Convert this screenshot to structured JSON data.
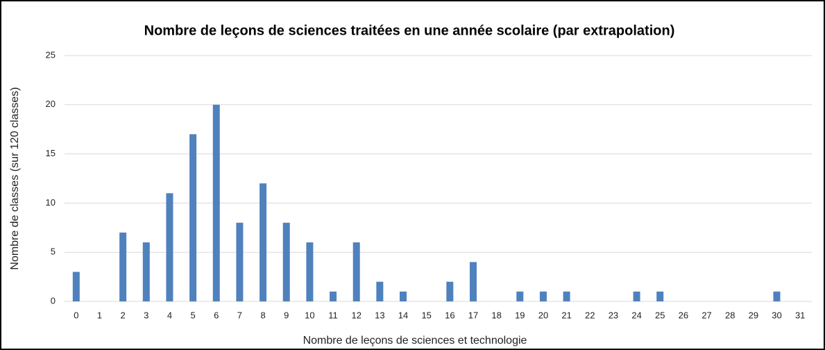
{
  "chart_data": {
    "type": "bar",
    "title": "Nombre de leçons de sciences traitées en une année scolaire (par extrapolation)",
    "x_label": "Nombre de leçons de sciences et technologie",
    "y_label": "Nombre de classes (sur 120 classes)",
    "categories": [
      "0",
      "1",
      "2",
      "3",
      "4",
      "5",
      "6",
      "7",
      "8",
      "9",
      "10",
      "11",
      "12",
      "13",
      "14",
      "15",
      "16",
      "17",
      "18",
      "19",
      "20",
      "21",
      "22",
      "23",
      "24",
      "25",
      "26",
      "27",
      "28",
      "29",
      "30",
      "31"
    ],
    "values": [
      3,
      0,
      7,
      6,
      11,
      17,
      20,
      8,
      12,
      8,
      6,
      1,
      6,
      2,
      1,
      0,
      2,
      4,
      0,
      1,
      1,
      1,
      0,
      0,
      1,
      1,
      0,
      0,
      0,
      0,
      1,
      0
    ],
    "color": "#4f81bd",
    "ylim": [
      0,
      25
    ],
    "yticks": [
      0,
      5,
      10,
      15,
      20,
      25
    ],
    "grid": true
  }
}
